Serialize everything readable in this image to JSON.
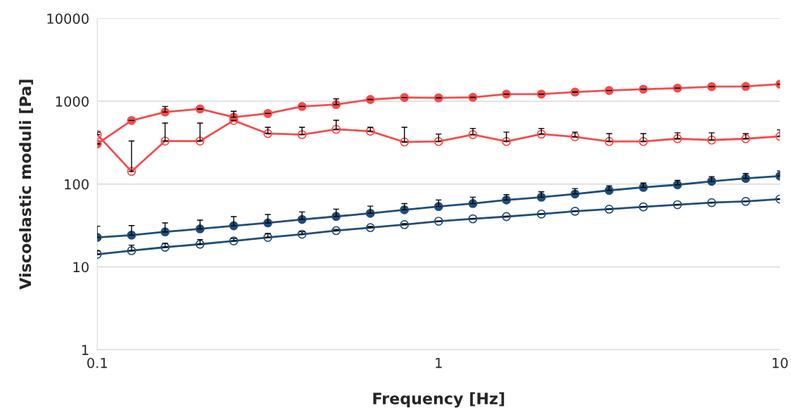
{
  "chart_data": {
    "type": "line",
    "xlabel": "Frequency [Hz]",
    "ylabel": "Viscoelastic moduli [Pa]",
    "log": "xy",
    "grid": "y",
    "marker": "circle",
    "line_style": "solid",
    "x": [
      0.1,
      0.126,
      0.158,
      0.2,
      0.251,
      0.316,
      0.398,
      0.501,
      0.631,
      0.794,
      1,
      1.26,
      1.58,
      2,
      2.51,
      3.16,
      3.98,
      5.01,
      6.31,
      7.94,
      10
    ],
    "xlim": [
      0.1,
      10
    ],
    "xticks": [
      0.1,
      1,
      10
    ],
    "ylim": [
      1,
      10000
    ],
    "yticks": [
      1,
      10,
      100,
      1000,
      10000
    ],
    "series": [
      {
        "color": "#f44c4c",
        "values": [
          306,
          586,
          741,
          807,
          643,
          712,
          865,
          912,
          1050,
          1110,
          1100,
          1115,
          1220,
          1220,
          1290,
          1350,
          1400,
          1440,
          1500,
          1510,
          1610
        ],
        "errors": [
          null,
          null,
          [
            741,
            865
          ],
          null,
          [
            643,
            757
          ],
          null,
          null,
          [
            912,
            1070
          ],
          null,
          null,
          null,
          null,
          null,
          null,
          null,
          null,
          null,
          null,
          null,
          null,
          null
        ]
      },
      {
        "color": "#f44c4c",
        "values": [
          396,
          142,
          331,
          331,
          586,
          407,
          396,
          458,
          435,
          322,
          327,
          396,
          327,
          402,
          372,
          327,
          327,
          353,
          340,
          353,
          377
        ],
        "errors": [
          [
            396,
            424
          ],
          [
            142,
            331
          ],
          [
            331,
            546
          ],
          [
            331,
            546
          ],
          null,
          [
            407,
            485
          ],
          [
            396,
            485
          ],
          [
            458,
            590
          ],
          [
            435,
            485
          ],
          [
            322,
            485
          ],
          [
            327,
            402
          ],
          [
            396,
            470
          ],
          [
            327,
            424
          ],
          [
            402,
            470
          ],
          [
            372,
            424
          ],
          [
            327,
            407
          ],
          [
            327,
            407
          ],
          [
            353,
            416
          ],
          [
            340,
            416
          ],
          [
            353,
            407
          ],
          [
            377,
            452
          ]
        ]
      },
      {
        "color": "#1f4e79",
        "values": [
          22.7,
          24.2,
          26.5,
          28.8,
          31.4,
          34.0,
          37.4,
          40.7,
          44.4,
          48.9,
          53.6,
          58.2,
          64.3,
          69.5,
          76.0,
          83.9,
          91.2,
          98.1,
          108,
          117,
          125
        ],
        "errors": [
          [
            22.7,
            31.0
          ],
          [
            24.2,
            31.6
          ],
          [
            26.5,
            34.0
          ],
          [
            28.8,
            36.7
          ],
          [
            31.4,
            40.5
          ],
          [
            34.0,
            42.9
          ],
          [
            37.4,
            46.1
          ],
          [
            40.7,
            49.8
          ],
          [
            44.4,
            54.2
          ],
          [
            48.9,
            58.2
          ],
          [
            53.6,
            64.3
          ],
          [
            58.2,
            69.5
          ],
          [
            64.3,
            74.6
          ],
          [
            69.5,
            80.7
          ],
          [
            76.0,
            88.3
          ],
          [
            83.9,
            95.5
          ],
          [
            91.2,
            103
          ],
          [
            98.1,
            111
          ],
          [
            108,
            123
          ],
          [
            117,
            134
          ],
          [
            125,
            144
          ]
        ]
      },
      {
        "color": "#1f4e79",
        "values": [
          14.2,
          15.7,
          17.3,
          18.8,
          20.6,
          22.7,
          24.8,
          27.4,
          29.8,
          32.4,
          35.6,
          38.1,
          40.5,
          43.5,
          47.0,
          49.8,
          53.1,
          56.4,
          59.7,
          61.8,
          65.9
        ],
        "errors": [
          [
            14.2,
            15.7
          ],
          [
            15.7,
            18.3
          ],
          [
            17.3,
            19.3
          ],
          [
            18.8,
            21.4
          ],
          [
            20.6,
            22.1
          ],
          [
            22.7,
            25.3
          ],
          [
            24.8,
            26.6
          ],
          [
            27.4,
            28.4
          ],
          [
            29.8,
            30.8
          ],
          [
            32.4,
            33.4
          ],
          null,
          null,
          null,
          null,
          null,
          null,
          null,
          null,
          null,
          null,
          null
        ]
      }
    ]
  }
}
